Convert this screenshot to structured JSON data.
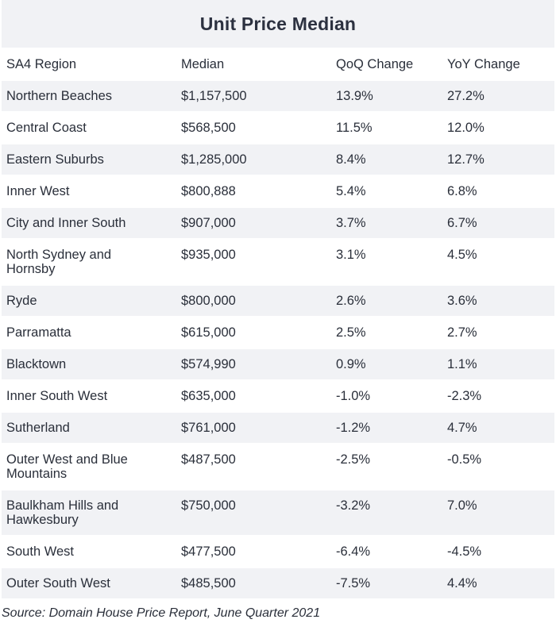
{
  "chart_data": {
    "type": "table",
    "title": "Unit Price Median",
    "columns": [
      "SA4 Region",
      "Median",
      "QoQ Change",
      "YoY Change"
    ],
    "rows": [
      [
        "Northern Beaches",
        "$1,157,500",
        "13.9%",
        "27.2%"
      ],
      [
        "Central Coast",
        "$568,500",
        "11.5%",
        "12.0%"
      ],
      [
        "Eastern Suburbs",
        "$1,285,000",
        "8.4%",
        "12.7%"
      ],
      [
        "Inner West",
        "$800,888",
        "5.4%",
        "6.8%"
      ],
      [
        "City and Inner South",
        "$907,000",
        "3.7%",
        "6.7%"
      ],
      [
        "North Sydney and Hornsby",
        "$935,000",
        "3.1%",
        "4.5%"
      ],
      [
        "Ryde",
        "$800,000",
        "2.6%",
        "3.6%"
      ],
      [
        "Parramatta",
        "$615,000",
        "2.5%",
        "2.7%"
      ],
      [
        "Blacktown",
        "$574,990",
        "0.9%",
        "1.1%"
      ],
      [
        "Inner South West",
        "$635,000",
        "-1.0%",
        "-2.3%"
      ],
      [
        "Sutherland",
        "$761,000",
        "-1.2%",
        "4.7%"
      ],
      [
        "Outer West and Blue Mountains",
        "$487,500",
        "-2.5%",
        "-0.5%"
      ],
      [
        "Baulkham Hills and Hawkesbury",
        "$750,000",
        "-3.2%",
        "7.0%"
      ],
      [
        "South West",
        "$477,500",
        "-6.4%",
        "-4.5%"
      ],
      [
        "Outer South West",
        "$485,500",
        "-7.5%",
        "4.4%"
      ]
    ],
    "source": "Source: Domain House Price Report, June Quarter 2021"
  },
  "colors": {
    "stripe": "#f1f2f5",
    "text": "#2a2f3a"
  }
}
